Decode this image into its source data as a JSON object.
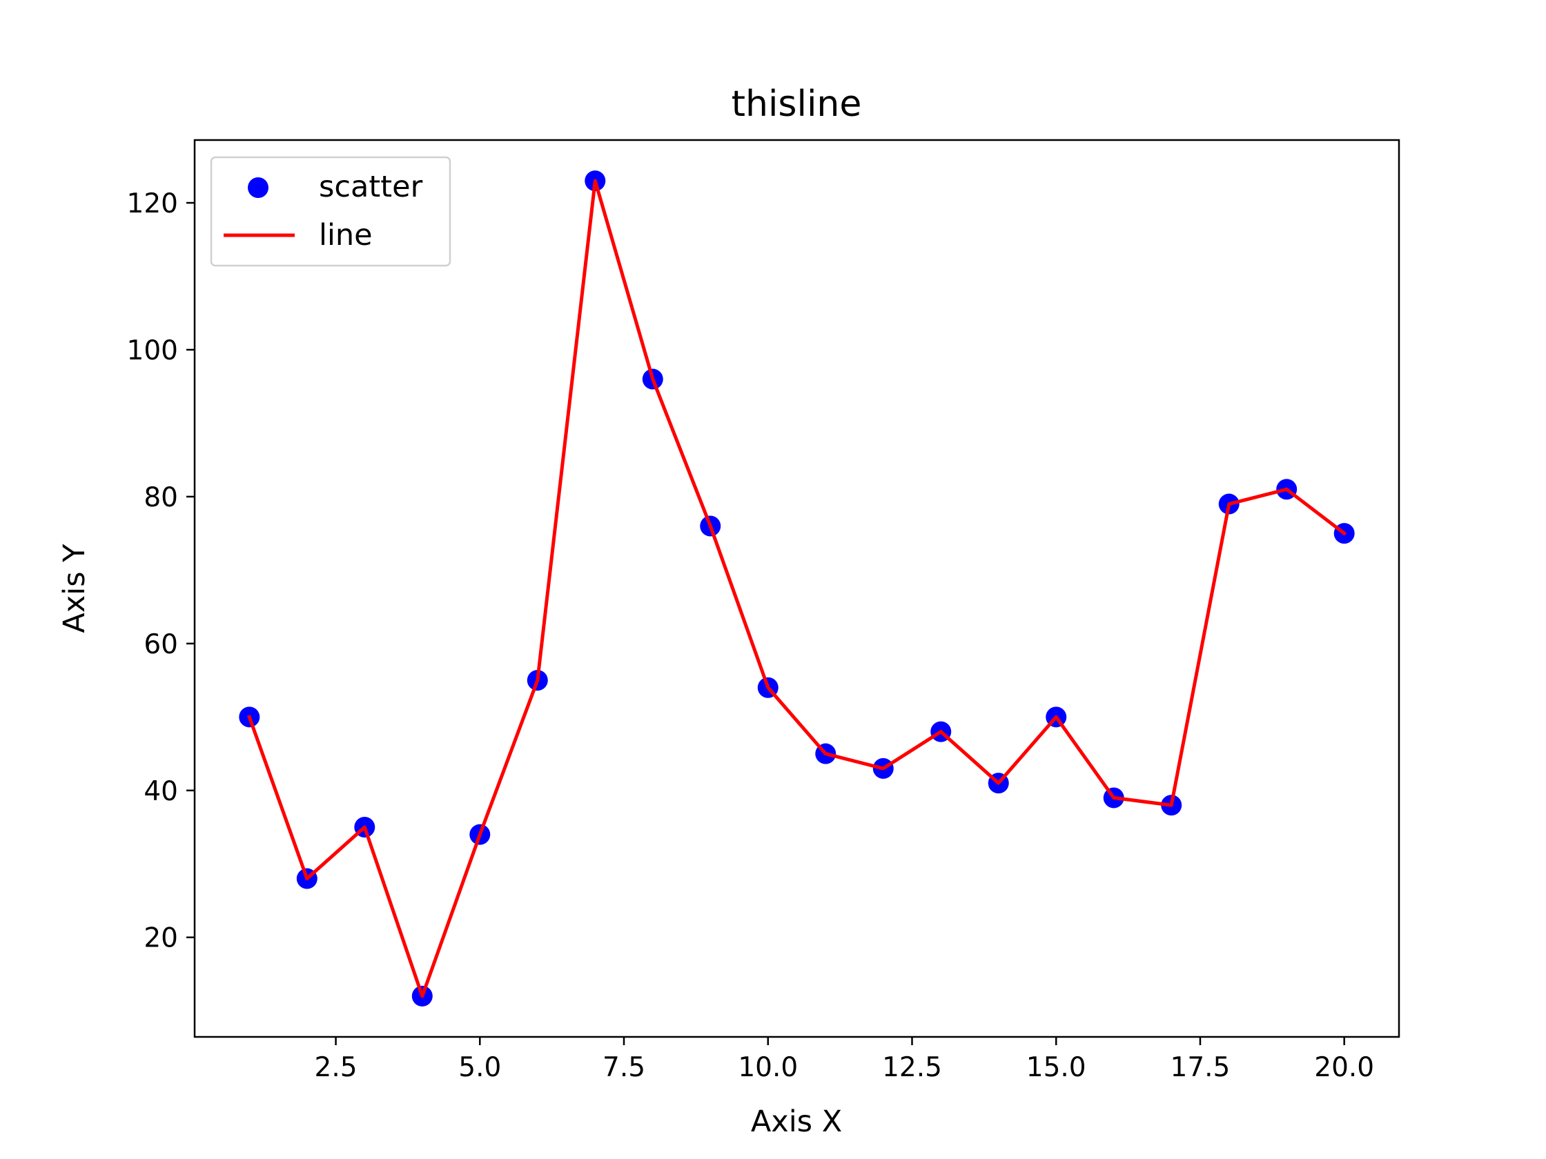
{
  "chart_data": {
    "type": "line",
    "title": "thisline",
    "xlabel": "Axis X",
    "ylabel": "Axis Y",
    "xlim": [
      0.05,
      20.95
    ],
    "ylim": [
      6.45,
      128.55
    ],
    "xticks": [
      2.5,
      5.0,
      7.5,
      10.0,
      12.5,
      15.0,
      17.5,
      20.0
    ],
    "xtick_labels": [
      "2.5",
      "5.0",
      "7.5",
      "10.0",
      "12.5",
      "15.0",
      "17.5",
      "20.0"
    ],
    "yticks": [
      20,
      40,
      60,
      80,
      100,
      120
    ],
    "ytick_labels": [
      "20",
      "40",
      "60",
      "80",
      "100",
      "120"
    ],
    "grid": false,
    "legend": {
      "position": "upper-left",
      "entries": [
        {
          "name": "scatter",
          "kind": "marker",
          "color": "#0000ff"
        },
        {
          "name": "line",
          "kind": "line",
          "color": "#ff0000"
        }
      ]
    },
    "x": [
      1,
      2,
      3,
      4,
      5,
      6,
      7,
      8,
      9,
      10,
      11,
      12,
      13,
      14,
      15,
      16,
      17,
      18,
      19,
      20
    ],
    "series": [
      {
        "name": "scatter",
        "kind": "scatter",
        "color": "#0000ff",
        "values": [
          50,
          28,
          35,
          12,
          34,
          55,
          123,
          96,
          76,
          54,
          45,
          43,
          48,
          41,
          50,
          39,
          38,
          79,
          81,
          75
        ]
      },
      {
        "name": "line",
        "kind": "line",
        "color": "#ff0000",
        "values": [
          50,
          28,
          35,
          12,
          34,
          55,
          123,
          96,
          76,
          54,
          45,
          43,
          48,
          41,
          50,
          39,
          38,
          79,
          81,
          75
        ]
      }
    ]
  }
}
